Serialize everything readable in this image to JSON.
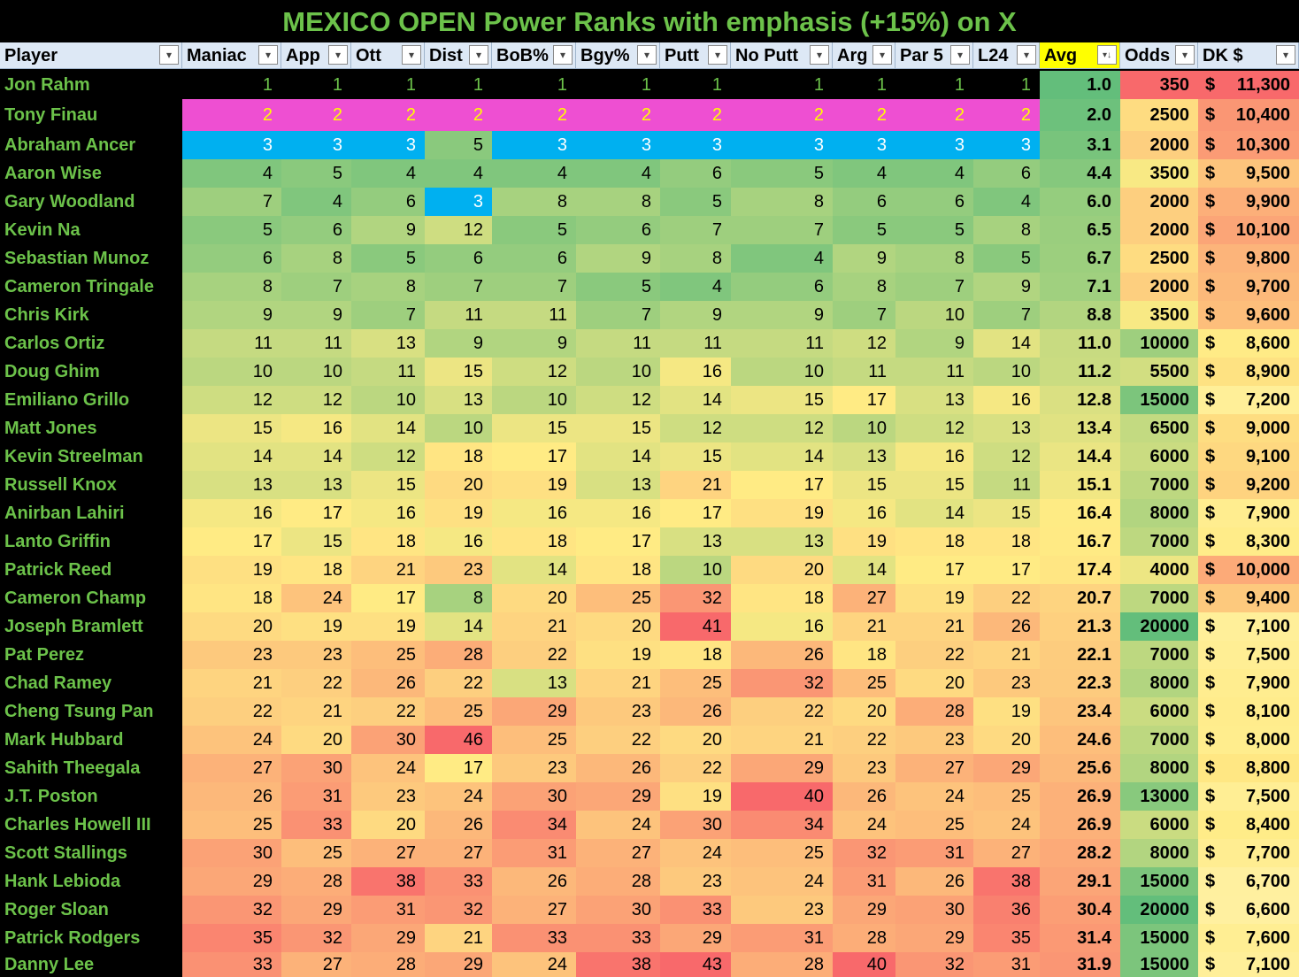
{
  "title": "MEXICO OPEN Power Ranks with emphasis (+15%) on X",
  "filter_icon": "dropdown-filter-icon",
  "sorted_filter_icon": "sort-descending-filter-icon",
  "headers": [
    "Player",
    "Maniac",
    "App",
    "Ott",
    "Dist",
    "BoB%",
    "Bgy%",
    "Putt",
    "No Putt",
    "Arg",
    "Par 5",
    "L24",
    "Avg",
    "Odds",
    "DK $"
  ],
  "highlight_colors": {
    "rank1_bg": "#000000",
    "rank1_text": "#6cc24a",
    "rank2_bg": "#ee4fd2",
    "rank2_text": "#ffff00",
    "rank3_bg": "#00b0f0",
    "player_text": "#6cc24a",
    "avg_header": "#ffff00"
  },
  "rows": [
    {
      "player": "Jon Rahm",
      "ranks": [
        1,
        1,
        1,
        1,
        1,
        1,
        1,
        1,
        1,
        1,
        1
      ],
      "avg": "1.0",
      "odds": "350",
      "dk": "11,300"
    },
    {
      "player": "Tony Finau",
      "ranks": [
        2,
        2,
        2,
        2,
        2,
        2,
        2,
        2,
        2,
        2,
        2
      ],
      "avg": "2.0",
      "odds": "2500",
      "dk": "10,400"
    },
    {
      "player": "Abraham Ancer",
      "ranks": [
        3,
        3,
        3,
        5,
        3,
        3,
        3,
        3,
        3,
        3,
        3
      ],
      "avg": "3.1",
      "odds": "2000",
      "dk": "10,300"
    },
    {
      "player": "Aaron Wise",
      "ranks": [
        4,
        5,
        4,
        4,
        4,
        4,
        6,
        5,
        4,
        4,
        6
      ],
      "avg": "4.4",
      "odds": "3500",
      "dk": "9,500"
    },
    {
      "player": "Gary Woodland",
      "ranks": [
        7,
        4,
        6,
        3,
        8,
        8,
        5,
        8,
        6,
        6,
        4
      ],
      "avg": "6.0",
      "odds": "2000",
      "dk": "9,900"
    },
    {
      "player": "Kevin Na",
      "ranks": [
        5,
        6,
        9,
        12,
        5,
        6,
        7,
        7,
        5,
        5,
        8
      ],
      "avg": "6.5",
      "odds": "2000",
      "dk": "10,100"
    },
    {
      "player": "Sebastian Munoz",
      "ranks": [
        6,
        8,
        5,
        6,
        6,
        9,
        8,
        4,
        9,
        8,
        5
      ],
      "avg": "6.7",
      "odds": "2500",
      "dk": "9,800"
    },
    {
      "player": "Cameron Tringale",
      "ranks": [
        8,
        7,
        8,
        7,
        7,
        5,
        4,
        6,
        8,
        7,
        9
      ],
      "avg": "7.1",
      "odds": "2000",
      "dk": "9,700"
    },
    {
      "player": "Chris Kirk",
      "ranks": [
        9,
        9,
        7,
        11,
        11,
        7,
        9,
        9,
        7,
        10,
        7
      ],
      "avg": "8.8",
      "odds": "3500",
      "dk": "9,600"
    },
    {
      "player": "Carlos Ortiz",
      "ranks": [
        11,
        11,
        13,
        9,
        9,
        11,
        11,
        11,
        12,
        9,
        14
      ],
      "avg": "11.0",
      "odds": "10000",
      "dk": "8,600"
    },
    {
      "player": "Doug Ghim",
      "ranks": [
        10,
        10,
        11,
        15,
        12,
        10,
        16,
        10,
        11,
        11,
        10
      ],
      "avg": "11.2",
      "odds": "5500",
      "dk": "8,900"
    },
    {
      "player": "Emiliano Grillo",
      "ranks": [
        12,
        12,
        10,
        13,
        10,
        12,
        14,
        15,
        17,
        13,
        16
      ],
      "avg": "12.8",
      "odds": "15000",
      "dk": "7,200"
    },
    {
      "player": "Matt Jones",
      "ranks": [
        15,
        16,
        14,
        10,
        15,
        15,
        12,
        12,
        10,
        12,
        13
      ],
      "avg": "13.4",
      "odds": "6500",
      "dk": "9,000"
    },
    {
      "player": "Kevin Streelman",
      "ranks": [
        14,
        14,
        12,
        18,
        17,
        14,
        15,
        14,
        13,
        16,
        12
      ],
      "avg": "14.4",
      "odds": "6000",
      "dk": "9,100"
    },
    {
      "player": "Russell Knox",
      "ranks": [
        13,
        13,
        15,
        20,
        19,
        13,
        21,
        17,
        15,
        15,
        11
      ],
      "avg": "15.1",
      "odds": "7000",
      "dk": "9,200"
    },
    {
      "player": "Anirban Lahiri",
      "ranks": [
        16,
        17,
        16,
        19,
        16,
        16,
        17,
        19,
        16,
        14,
        15
      ],
      "avg": "16.4",
      "odds": "8000",
      "dk": "7,900"
    },
    {
      "player": "Lanto Griffin",
      "ranks": [
        17,
        15,
        18,
        16,
        18,
        17,
        13,
        13,
        19,
        18,
        18
      ],
      "avg": "16.7",
      "odds": "7000",
      "dk": "8,300"
    },
    {
      "player": "Patrick Reed",
      "ranks": [
        19,
        18,
        21,
        23,
        14,
        18,
        10,
        20,
        14,
        17,
        17
      ],
      "avg": "17.4",
      "odds": "4000",
      "dk": "10,000"
    },
    {
      "player": "Cameron Champ",
      "ranks": [
        18,
        24,
        17,
        8,
        20,
        25,
        32,
        18,
        27,
        19,
        22
      ],
      "avg": "20.7",
      "odds": "7000",
      "dk": "9,400"
    },
    {
      "player": "Joseph Bramlett",
      "ranks": [
        20,
        19,
        19,
        14,
        21,
        20,
        41,
        16,
        21,
        21,
        26
      ],
      "avg": "21.3",
      "odds": "20000",
      "dk": "7,100"
    },
    {
      "player": "Pat Perez",
      "ranks": [
        23,
        23,
        25,
        28,
        22,
        19,
        18,
        26,
        18,
        22,
        21
      ],
      "avg": "22.1",
      "odds": "7000",
      "dk": "7,500"
    },
    {
      "player": "Chad Ramey",
      "ranks": [
        21,
        22,
        26,
        22,
        13,
        21,
        25,
        32,
        25,
        20,
        23
      ],
      "avg": "22.3",
      "odds": "8000",
      "dk": "7,900"
    },
    {
      "player": "Cheng Tsung Pan",
      "ranks": [
        22,
        21,
        22,
        25,
        29,
        23,
        26,
        22,
        20,
        28,
        19
      ],
      "avg": "23.4",
      "odds": "6000",
      "dk": "8,100"
    },
    {
      "player": "Mark Hubbard",
      "ranks": [
        24,
        20,
        30,
        46,
        25,
        22,
        20,
        21,
        22,
        23,
        20
      ],
      "avg": "24.6",
      "odds": "7000",
      "dk": "8,000"
    },
    {
      "player": "Sahith Theegala",
      "ranks": [
        27,
        30,
        24,
        17,
        23,
        26,
        22,
        29,
        23,
        27,
        29
      ],
      "avg": "25.6",
      "odds": "8000",
      "dk": "8,800"
    },
    {
      "player": "J.T. Poston",
      "ranks": [
        26,
        31,
        23,
        24,
        30,
        29,
        19,
        40,
        26,
        24,
        25
      ],
      "avg": "26.9",
      "odds": "13000",
      "dk": "7,500"
    },
    {
      "player": "Charles Howell III",
      "ranks": [
        25,
        33,
        20,
        26,
        34,
        24,
        30,
        34,
        24,
        25,
        24
      ],
      "avg": "26.9",
      "odds": "6000",
      "dk": "8,400"
    },
    {
      "player": "Scott Stallings",
      "ranks": [
        30,
        25,
        27,
        27,
        31,
        27,
        24,
        25,
        32,
        31,
        27
      ],
      "avg": "28.2",
      "odds": "8000",
      "dk": "7,700"
    },
    {
      "player": "Hank Lebioda",
      "ranks": [
        29,
        28,
        38,
        33,
        26,
        28,
        23,
        24,
        31,
        26,
        38
      ],
      "avg": "29.1",
      "odds": "15000",
      "dk": "6,700"
    },
    {
      "player": "Roger Sloan",
      "ranks": [
        32,
        29,
        31,
        32,
        27,
        30,
        33,
        23,
        29,
        30,
        36
      ],
      "avg": "30.4",
      "odds": "20000",
      "dk": "6,600"
    },
    {
      "player": "Patrick Rodgers",
      "ranks": [
        35,
        32,
        29,
        21,
        33,
        33,
        29,
        31,
        28,
        29,
        35
      ],
      "avg": "31.4",
      "odds": "15000",
      "dk": "7,600"
    },
    {
      "player": "Danny Lee",
      "ranks": [
        33,
        27,
        28,
        29,
        24,
        38,
        43,
        28,
        40,
        32,
        31
      ],
      "avg": "31.9",
      "odds": "15000",
      "dk": "7,100"
    }
  ]
}
